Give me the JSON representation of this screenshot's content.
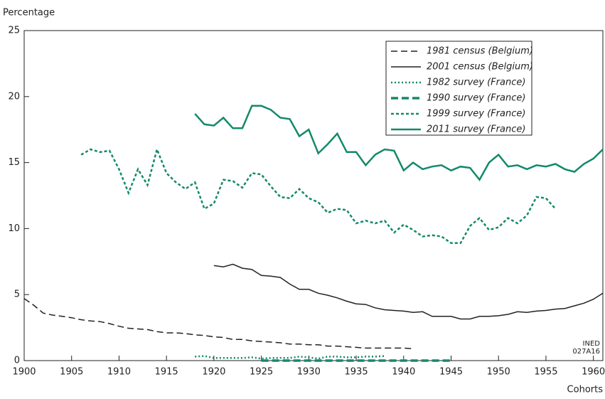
{
  "chart_data": {
    "type": "line",
    "y_label": "Percentage",
    "x_label": "Cohorts",
    "annotation": [
      "INED",
      "027A16"
    ],
    "xlim": [
      1900,
      1961
    ],
    "xticks": [
      1900,
      1905,
      1910,
      1915,
      1920,
      1925,
      1930,
      1935,
      1940,
      1945,
      1950,
      1955,
      1960
    ],
    "ylim": [
      0,
      25
    ],
    "yticks": [
      0,
      5,
      10,
      15,
      20,
      25
    ],
    "legend": "upper right",
    "series": [
      {
        "name": "1981 census (Belgium)",
        "color": "#222222",
        "style": "dashed",
        "x": [
          1900,
          1901,
          1902,
          1903,
          1904,
          1905,
          1906,
          1907,
          1908,
          1909,
          1910,
          1911,
          1912,
          1913,
          1914,
          1915,
          1916,
          1917,
          1918,
          1919,
          1920,
          1921,
          1922,
          1923,
          1924,
          1925,
          1926,
          1927,
          1928,
          1929,
          1930,
          1931,
          1932,
          1933,
          1934,
          1935,
          1936,
          1937,
          1938,
          1939,
          1940,
          1941
        ],
        "values": [
          4.7,
          4.2,
          3.6,
          3.45,
          3.35,
          3.25,
          3.1,
          3.0,
          2.95,
          2.8,
          2.6,
          2.45,
          2.4,
          2.35,
          2.2,
          2.1,
          2.1,
          2.05,
          1.95,
          1.9,
          1.8,
          1.75,
          1.6,
          1.6,
          1.5,
          1.45,
          1.4,
          1.35,
          1.25,
          1.25,
          1.2,
          1.2,
          1.1,
          1.1,
          1.05,
          1.0,
          0.95,
          0.95,
          0.95,
          0.95,
          0.95,
          0.9
        ]
      },
      {
        "name": "2001 census (Belgium)",
        "color": "#222222",
        "style": "solid",
        "x": [
          1920,
          1921,
          1922,
          1923,
          1924,
          1925,
          1926,
          1927,
          1928,
          1929,
          1930,
          1931,
          1932,
          1933,
          1934,
          1935,
          1936,
          1937,
          1938,
          1939,
          1940,
          1941,
          1942,
          1943,
          1944,
          1945,
          1946,
          1947,
          1948,
          1949,
          1950,
          1951,
          1952,
          1953,
          1954,
          1955,
          1956,
          1957,
          1958,
          1959,
          1960,
          1961
        ],
        "values": [
          7.2,
          7.1,
          7.3,
          7.0,
          6.9,
          6.45,
          6.4,
          6.3,
          5.8,
          5.4,
          5.4,
          5.1,
          4.95,
          4.75,
          4.5,
          4.3,
          4.25,
          4.0,
          3.85,
          3.8,
          3.75,
          3.65,
          3.7,
          3.35,
          3.35,
          3.35,
          3.15,
          3.15,
          3.35,
          3.35,
          3.4,
          3.5,
          3.7,
          3.65,
          3.75,
          3.8,
          3.9,
          3.95,
          4.15,
          4.35,
          4.65,
          5.1
        ]
      },
      {
        "name": "1982 survey (France)",
        "color": "#13896b",
        "style": "dotted",
        "x": [
          1918,
          1919,
          1920,
          1921,
          1922,
          1923,
          1924,
          1925,
          1926,
          1927,
          1928,
          1929,
          1930,
          1931,
          1932,
          1933,
          1934,
          1935,
          1936,
          1937,
          1938
        ],
        "values": [
          0.3,
          0.35,
          0.2,
          0.2,
          0.2,
          0.2,
          0.25,
          0.15,
          0.2,
          0.2,
          0.2,
          0.3,
          0.25,
          0.15,
          0.3,
          0.3,
          0.25,
          0.25,
          0.3,
          0.3,
          0.35
        ]
      },
      {
        "name": "1990 survey (France)",
        "color": "#13896b",
        "style": "thick-dashed",
        "x": [
          1925,
          1926,
          1927,
          1928,
          1929,
          1930,
          1931,
          1932,
          1933,
          1934,
          1935,
          1936,
          1937,
          1938,
          1939,
          1940,
          1941,
          1942,
          1943,
          1944,
          1945
        ],
        "values": [
          0,
          0,
          0,
          0,
          0,
          0,
          0,
          0,
          0,
          0,
          0,
          0,
          0,
          0,
          0,
          0,
          0,
          0,
          0,
          0,
          0
        ]
      },
      {
        "name": "1999 survey (France)",
        "color": "#13896b",
        "style": "short-dashed",
        "x": [
          1906,
          1907,
          1908,
          1909,
          1910,
          1911,
          1912,
          1913,
          1914,
          1915,
          1916,
          1917,
          1918,
          1919,
          1920,
          1921,
          1922,
          1923,
          1924,
          1925,
          1926,
          1927,
          1928,
          1929,
          1930,
          1931,
          1932,
          1933,
          1934,
          1935,
          1936,
          1937,
          1938,
          1939,
          1940,
          1941,
          1942,
          1943,
          1944,
          1945,
          1946,
          1947,
          1948,
          1949,
          1950,
          1951,
          1952,
          1953,
          1954,
          1955,
          1956
        ],
        "values": [
          15.6,
          16.0,
          15.8,
          15.9,
          14.5,
          12.7,
          14.5,
          13.3,
          16.0,
          14.2,
          13.5,
          13.0,
          13.5,
          11.5,
          11.9,
          13.7,
          13.6,
          13.1,
          14.2,
          14.1,
          13.2,
          12.4,
          12.3,
          13.0,
          12.3,
          12.0,
          11.2,
          11.5,
          11.4,
          10.4,
          10.6,
          10.4,
          10.6,
          9.7,
          10.3,
          9.9,
          9.4,
          9.5,
          9.4,
          8.9,
          8.9,
          10.2,
          10.8,
          9.9,
          10.1,
          10.8,
          10.4,
          11.0,
          12.4,
          12.3,
          11.5
        ]
      },
      {
        "name": "2011 survey (France)",
        "color": "#13896b",
        "style": "thick-solid",
        "x": [
          1918,
          1919,
          1920,
          1921,
          1922,
          1923,
          1924,
          1925,
          1926,
          1927,
          1928,
          1929,
          1930,
          1931,
          1932,
          1933,
          1934,
          1935,
          1936,
          1937,
          1938,
          1939,
          1940,
          1941,
          1942,
          1943,
          1944,
          1945,
          1946,
          1947,
          1948,
          1949,
          1950,
          1951,
          1952,
          1953,
          1954,
          1955,
          1956,
          1957,
          1958,
          1959,
          1960,
          1961
        ],
        "values": [
          18.7,
          17.9,
          17.8,
          18.4,
          17.6,
          17.6,
          19.3,
          19.3,
          19.0,
          18.4,
          18.3,
          17.0,
          17.5,
          15.7,
          16.4,
          17.2,
          15.8,
          15.8,
          14.8,
          15.6,
          16.0,
          15.9,
          14.4,
          15.0,
          14.5,
          14.7,
          14.8,
          14.4,
          14.7,
          14.6,
          13.7,
          15.0,
          15.6,
          14.7,
          14.8,
          14.5,
          14.8,
          14.7,
          14.9,
          14.5,
          14.3,
          14.9,
          15.3,
          16.0
        ]
      }
    ]
  }
}
